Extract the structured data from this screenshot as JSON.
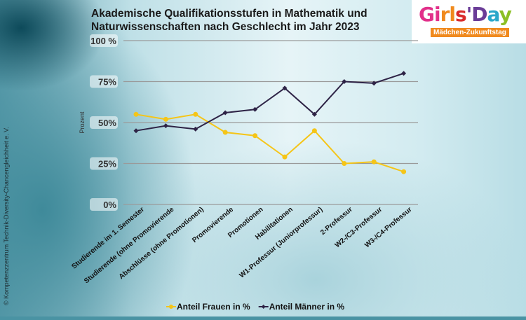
{
  "chart_data": {
    "type": "line",
    "title": "Akademische Qualifikationsstufen in Mathematik und Naturwissenschaften nach Geschlecht im Jahr 2023",
    "ylabel": "Prozent",
    "xlabel": "",
    "ylim": [
      0,
      100
    ],
    "yticks": [
      "0%",
      "25%",
      "50%",
      "75%",
      "100 %"
    ],
    "ytick_values": [
      0,
      25,
      50,
      75,
      100
    ],
    "grid": true,
    "legend_position": "bottom",
    "categories": [
      "Studierende im 1. Semester",
      "Studierende (ohne Promovierende",
      "Abschlüsse (ohne Promotionen)",
      "Promovierende",
      "Promotionen",
      "Habilitationen",
      "W1-Professur (Juniorprofessur)",
      "2-Professur",
      "W2-/C3-Professur",
      "W3-/C4-Professur"
    ],
    "series": [
      {
        "name": "Anteil Frauen in %",
        "color": "#f5c518",
        "marker": "circle",
        "values": [
          55,
          52,
          55,
          44,
          42,
          29,
          45,
          25,
          26,
          20
        ]
      },
      {
        "name": "Anteil Männer in %",
        "color": "#2e2346",
        "marker": "diamond",
        "values": [
          45,
          48,
          46,
          56,
          58,
          71,
          55,
          75,
          74,
          80
        ]
      }
    ]
  },
  "logo": {
    "text": "Girls'Day",
    "subtitle": "Mädchen-Zukunftstag"
  },
  "copyright": "© Kompetenzzentrum Technik-Diversity-Chancengleichheit e. V."
}
